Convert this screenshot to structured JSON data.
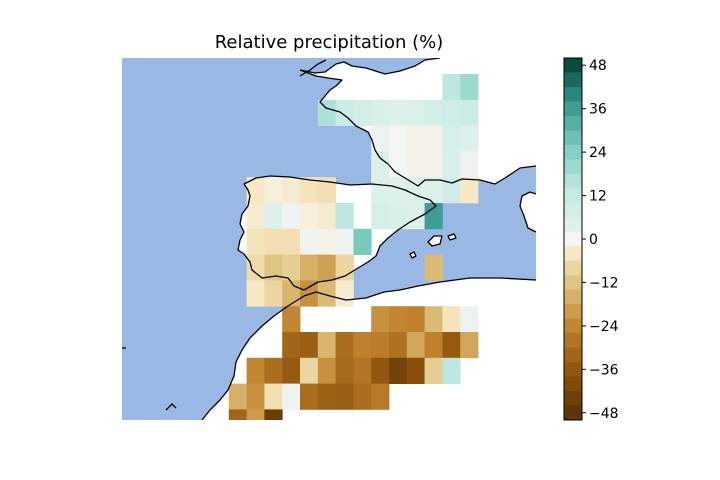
{
  "figure": {
    "title": "Relative precipitation (%)"
  },
  "map": {
    "ocean_color": "#99b8e3",
    "coastline_color": "#000000",
    "region": "Iberian Peninsula, southern France and north-west Africa"
  },
  "colorbar": {
    "colormap": "BrBG",
    "vmin": -50,
    "vmax": 50,
    "ticks": [
      48,
      36,
      24,
      12,
      0,
      -12,
      -24,
      -36,
      -48
    ],
    "tick_labels": [
      "48",
      "36",
      "24",
      "12",
      "0",
      "−12",
      "−24",
      "−36",
      "−48"
    ]
  },
  "chart_data": {
    "type": "heatmap",
    "title": "Relative precipitation (%)",
    "value_range": [
      -50,
      50
    ],
    "colormap": "BrBG",
    "note_rows": "row 0 = northernmost grid row, column 0 = westernmost grid column; null = no data",
    "grid": [
      [
        null,
        null,
        null,
        null,
        null,
        null,
        null,
        null,
        null,
        null,
        null,
        null,
        null,
        null,
        null,
        null,
        null,
        null,
        14,
        20,
        null,
        null,
        null
      ],
      [
        null,
        null,
        null,
        null,
        null,
        null,
        null,
        null,
        null,
        null,
        null,
        17,
        11,
        8,
        6,
        4,
        5,
        8,
        9,
        11,
        null,
        null,
        null
      ],
      [
        null,
        null,
        null,
        null,
        null,
        null,
        null,
        null,
        null,
        null,
        null,
        null,
        null,
        null,
        2,
        0,
        -1,
        -1,
        7,
        4,
        null,
        null,
        null
      ],
      [
        null,
        null,
        null,
        null,
        null,
        null,
        null,
        null,
        null,
        null,
        null,
        null,
        null,
        null,
        4,
        0,
        -1,
        -1,
        6,
        1,
        null,
        null,
        null
      ],
      [
        null,
        null,
        null,
        null,
        null,
        null,
        null,
        -4,
        -2,
        -3,
        -5,
        -6,
        null,
        null,
        5,
        4,
        5,
        4,
        9,
        -4,
        null,
        null,
        null
      ],
      [
        null,
        null,
        null,
        null,
        null,
        null,
        null,
        -3,
        4,
        1,
        -2,
        -3,
        14,
        null,
        7,
        6,
        4,
        36,
        null,
        null,
        null,
        null,
        null
      ],
      [
        null,
        null,
        null,
        null,
        null,
        null,
        null,
        -5,
        -6,
        -6,
        1,
        -1,
        1,
        26,
        null,
        null,
        null,
        null,
        null,
        null,
        null,
        null,
        null
      ],
      [
        null,
        null,
        null,
        null,
        null,
        null,
        null,
        -7,
        -12,
        -10,
        -16,
        -19,
        -8,
        null,
        null,
        null,
        null,
        -14,
        null,
        null,
        null,
        null,
        null
      ],
      [
        null,
        null,
        null,
        null,
        null,
        null,
        null,
        -4,
        -8,
        -15,
        -22,
        -14,
        -3,
        null,
        null,
        null,
        null,
        null,
        null,
        null,
        null,
        null,
        null
      ],
      [
        null,
        null,
        null,
        null,
        null,
        null,
        null,
        null,
        null,
        -24,
        null,
        null,
        null,
        null,
        -22,
        -24,
        -25,
        -14,
        -5,
        2,
        null,
        null,
        null
      ],
      [
        null,
        null,
        null,
        null,
        null,
        null,
        null,
        null,
        null,
        -32,
        -34,
        -15,
        -30,
        -25,
        -26,
        -29,
        -18,
        -25,
        -35,
        -18,
        null,
        null,
        null
      ],
      [
        null,
        null,
        null,
        null,
        null,
        null,
        null,
        -24,
        -30,
        -35,
        -8,
        -22,
        -31,
        -28,
        -36,
        -43,
        -38,
        -10,
        14,
        null,
        null,
        null,
        null
      ],
      [
        null,
        null,
        null,
        null,
        null,
        null,
        -16,
        -22,
        -6,
        1,
        -30,
        -33,
        -34,
        -30,
        -27,
        null,
        null,
        null,
        null,
        null,
        null,
        null,
        null
      ],
      [
        null,
        null,
        null,
        null,
        null,
        null,
        -32,
        -20,
        -45,
        null,
        null,
        null,
        null,
        null,
        null,
        null,
        null,
        null,
        null,
        null,
        null,
        null,
        null
      ]
    ]
  }
}
